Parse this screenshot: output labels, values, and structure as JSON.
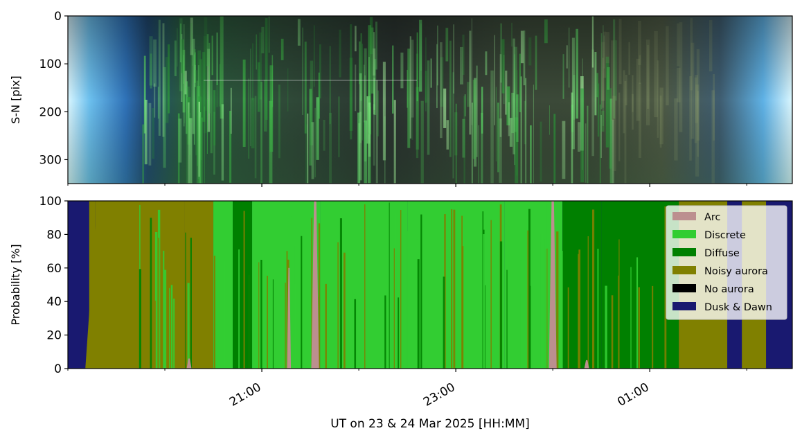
{
  "chart_data": [
    {
      "type": "heatmap",
      "title": "",
      "ylabel": "S-N [pix]",
      "ylim": [
        350,
        0
      ],
      "y_ticks": [
        "0",
        "100",
        "200",
        "300"
      ],
      "description_colors": {
        "twilight": "#7fd0f0",
        "aurora_green": "#4fdc4f",
        "dark_sky": "#2a3030"
      }
    },
    {
      "type": "area",
      "ylabel": "Probability [%]",
      "xlabel": "UT on 23 & 24 Mar 2025 [HH:MM]",
      "ylim": [
        0,
        100
      ],
      "y_ticks": [
        "0",
        "20",
        "40",
        "60",
        "80",
        "100"
      ],
      "x_ticks": [
        "21:00",
        "23:00",
        "01:00"
      ],
      "x_range_hours": [
        19.0,
        26.47
      ],
      "legend_position": "upper-right",
      "series": [
        {
          "name": "Arc",
          "color": "#bc8f8f"
        },
        {
          "name": "Discrete",
          "color": "#32cd32"
        },
        {
          "name": "Diffuse",
          "color": "#008000"
        },
        {
          "name": "Noisy aurora",
          "color": "#808000"
        },
        {
          "name": "No aurora",
          "color": "#000000"
        },
        {
          "name": "Dusk & Dawn",
          "color": "#191970"
        }
      ],
      "segments": [
        {
          "start": 19.0,
          "end": 19.22,
          "class": "Dusk & Dawn"
        },
        {
          "start": 19.22,
          "end": 19.28,
          "class": "Noisy aurora"
        },
        {
          "start": 19.28,
          "end": 20.2,
          "class": "Noisy aurora"
        },
        {
          "start": 20.2,
          "end": 20.5,
          "class": "Noisy aurora"
        },
        {
          "start": 20.5,
          "end": 20.7,
          "class": "Discrete"
        },
        {
          "start": 20.7,
          "end": 20.9,
          "class": "Diffuse"
        },
        {
          "start": 20.9,
          "end": 21.6,
          "class": "Discrete"
        },
        {
          "start": 21.6,
          "end": 22.5,
          "class": "Discrete"
        },
        {
          "start": 22.5,
          "end": 23.5,
          "class": "Discrete"
        },
        {
          "start": 23.5,
          "end": 24.1,
          "class": "Discrete"
        },
        {
          "start": 24.1,
          "end": 24.5,
          "class": "Diffuse"
        },
        {
          "start": 24.5,
          "end": 25.3,
          "class": "Diffuse"
        },
        {
          "start": 25.3,
          "end": 25.8,
          "class": "Noisy aurora"
        },
        {
          "start": 25.8,
          "end": 25.95,
          "class": "Dusk & Dawn"
        },
        {
          "start": 25.95,
          "end": 26.2,
          "class": "Noisy aurora"
        },
        {
          "start": 26.2,
          "end": 26.47,
          "class": "Dusk & Dawn"
        }
      ],
      "arc_spikes": [
        {
          "at": 21.55,
          "width": 0.08,
          "peak": 100
        },
        {
          "at": 21.28,
          "width": 0.04,
          "peak": 60
        },
        {
          "at": 24.0,
          "width": 0.08,
          "peak": 100
        },
        {
          "at": 20.25,
          "width": 0.05,
          "peak": 6
        },
        {
          "at": 24.35,
          "width": 0.05,
          "peak": 5
        }
      ]
    }
  ]
}
